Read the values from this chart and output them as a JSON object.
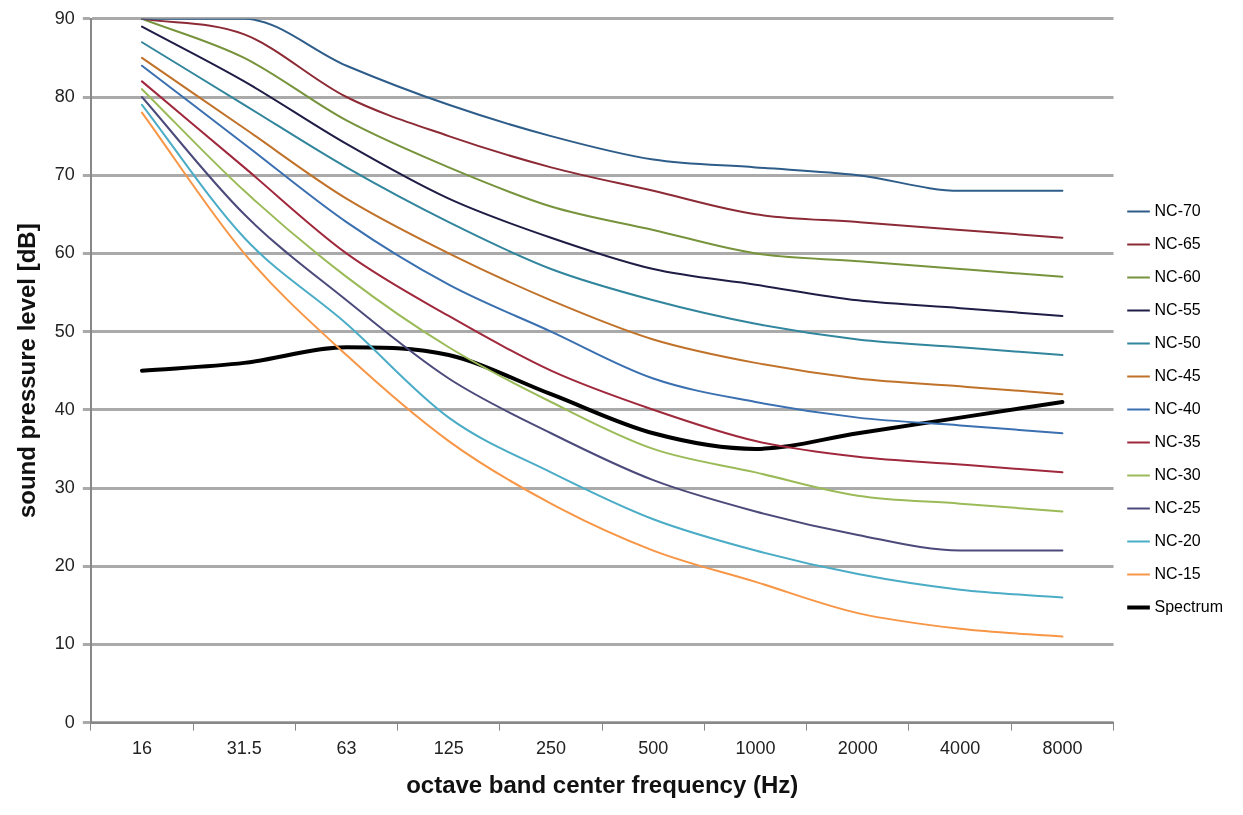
{
  "chart_data": {
    "type": "line",
    "xlabel": "octave band center frequency (Hz)",
    "ylabel": "sound pressure level [dB]",
    "categories": [
      "16",
      "31.5",
      "63",
      "125",
      "250",
      "500",
      "1000",
      "2000",
      "4000",
      "8000"
    ],
    "ylim": [
      0,
      90
    ],
    "yticks": [
      0,
      10,
      20,
      30,
      40,
      50,
      60,
      70,
      80,
      90
    ],
    "grid": "y",
    "legend": "right",
    "marker": "none",
    "line_style": "solid",
    "series": [
      {
        "name": "NC-70",
        "color": "#2f5d8a",
        "values": [
          90,
          90,
          84,
          79,
          75,
          72,
          71,
          70,
          68,
          68
        ]
      },
      {
        "name": "NC-65",
        "color": "#8c2a35",
        "values": [
          90,
          88,
          80,
          75,
          71,
          68,
          65,
          64,
          63,
          62
        ]
      },
      {
        "name": "NC-60",
        "color": "#77933c",
        "values": [
          90,
          85,
          77,
          71,
          66,
          63,
          60,
          59,
          58,
          57
        ]
      },
      {
        "name": "NC-55",
        "color": "#1f1d45",
        "values": [
          89,
          82,
          74,
          67,
          62,
          58,
          56,
          54,
          53,
          52
        ]
      },
      {
        "name": "NC-50",
        "color": "#31859c",
        "values": [
          87,
          79,
          71,
          64,
          58,
          54,
          51,
          49,
          48,
          47
        ]
      },
      {
        "name": "NC-45",
        "color": "#c0722a",
        "values": [
          85,
          76,
          67,
          60,
          54,
          49,
          46,
          44,
          43,
          42
        ]
      },
      {
        "name": "NC-40",
        "color": "#3a6fb0",
        "values": [
          84,
          74,
          64,
          56,
          50,
          44,
          41,
          39,
          38,
          37
        ]
      },
      {
        "name": "NC-35",
        "color": "#a0283c",
        "values": [
          82,
          71,
          60,
          52,
          45,
          40,
          36,
          34,
          33,
          32
        ]
      },
      {
        "name": "NC-30",
        "color": "#9bbb59",
        "values": [
          81,
          68,
          57,
          48,
          41,
          35,
          32,
          29,
          28,
          27
        ]
      },
      {
        "name": "NC-25",
        "color": "#4b4a7a",
        "values": [
          80,
          65,
          54,
          44,
          37,
          31,
          27,
          24,
          22,
          22
        ]
      },
      {
        "name": "NC-20",
        "color": "#4bacc6",
        "values": [
          79,
          62,
          51,
          39,
          32,
          26,
          22,
          19,
          17,
          16
        ]
      },
      {
        "name": "NC-15",
        "color": "#f79646",
        "values": [
          78,
          60,
          47,
          36,
          28,
          22,
          18,
          14,
          12,
          11
        ]
      },
      {
        "name": "Spectrum",
        "color": "#000000",
        "values": [
          45,
          46,
          48,
          47,
          42,
          37,
          35,
          37,
          39,
          41
        ]
      }
    ]
  }
}
